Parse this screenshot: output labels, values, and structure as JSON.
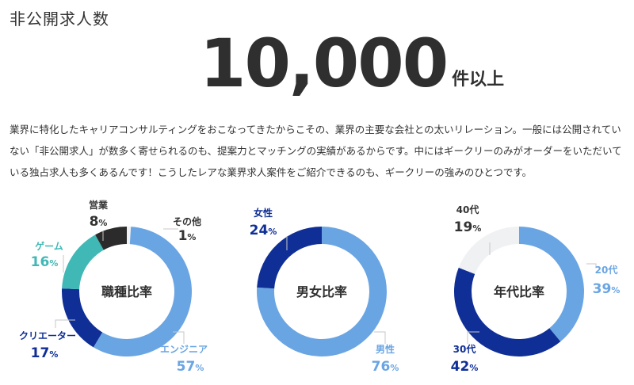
{
  "section_title": "非公開求人数",
  "headline": {
    "number": "10,000",
    "unit": "件以上"
  },
  "description": "業界に特化したキャリアコンサルティングをおこなってきたからこその、業界の主要な会社との太いリレーション。一般には公開されていない「非公開求人」が数多く寄せられるのも、提案力とマッチングの実績があるからです。中にはギークリーのみがオーダーをいただいている独占求人も多くあるんです！こうしたレアな業界求人案件をご紹介できるのも、ギークリーの強みのひとつです。",
  "chart_data": [
    {
      "type": "pie",
      "title": "職種比率",
      "series": [
        {
          "label": "その他",
          "value": 1,
          "unit": "%",
          "color": "#f0f1f3",
          "label_color": "#333333"
        },
        {
          "label": "エンジニア",
          "value": 57,
          "unit": "%",
          "color": "#6aa5e3",
          "label_color": "#6aa5e3"
        },
        {
          "label": "クリエーター",
          "value": 17,
          "unit": "%",
          "color": "#0f2f96",
          "label_color": "#0f2f96"
        },
        {
          "label": "ゲーム",
          "value": 16,
          "unit": "%",
          "color": "#3fb8b6",
          "label_color": "#3fb8b6"
        },
        {
          "label": "営業",
          "value": 8,
          "unit": "%",
          "color": "#2b2b2b",
          "label_color": "#333333"
        }
      ]
    },
    {
      "type": "pie",
      "title": "男女比率",
      "series": [
        {
          "label": "男性",
          "value": 76,
          "unit": "%",
          "color": "#6aa5e3",
          "label_color": "#6aa5e3"
        },
        {
          "label": "女性",
          "value": 24,
          "unit": "%",
          "color": "#0f2f96",
          "label_color": "#0f2f96"
        }
      ]
    },
    {
      "type": "pie",
      "title": "年代比率",
      "series": [
        {
          "label": "20代",
          "value": 39,
          "unit": "%",
          "color": "#6aa5e3",
          "label_color": "#6aa5e3"
        },
        {
          "label": "30代",
          "value": 42,
          "unit": "%",
          "color": "#0f2f96",
          "label_color": "#0f2f96"
        },
        {
          "label": "40代",
          "value": 19,
          "unit": "%",
          "color": "#f0f1f3",
          "label_color": "#333333"
        }
      ]
    }
  ]
}
